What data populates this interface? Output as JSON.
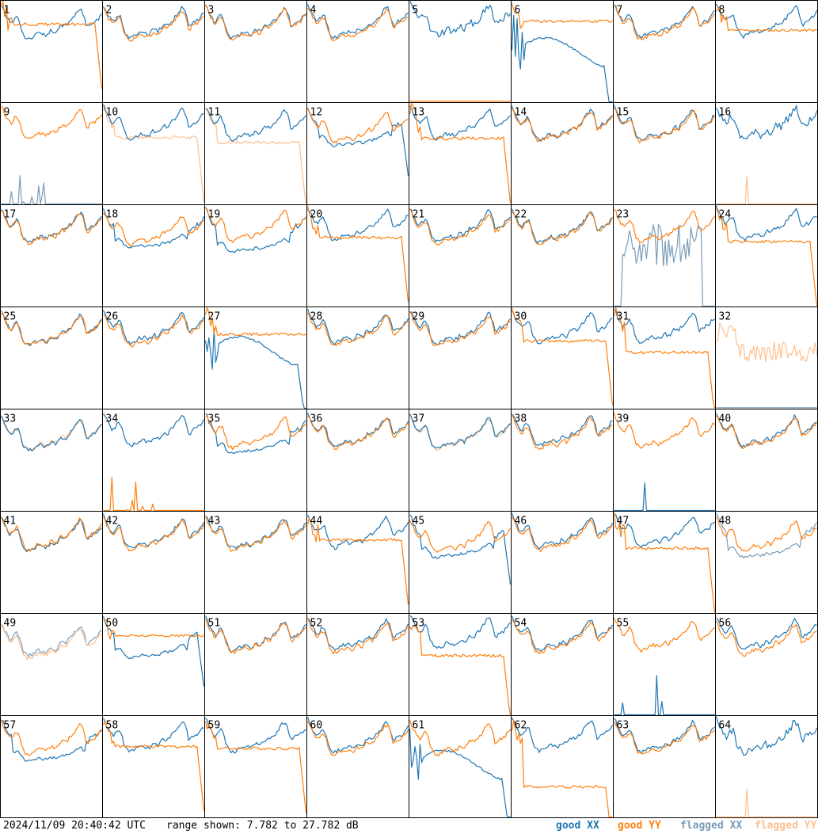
{
  "chart_data": {
    "type": "line",
    "panel_labels": [
      "1",
      "2",
      "3",
      "4",
      "5",
      "6",
      "7",
      "8",
      "9",
      "10",
      "11",
      "12",
      "13",
      "14",
      "15",
      "16",
      "17",
      "18",
      "19",
      "20",
      "21",
      "22",
      "23",
      "24",
      "25",
      "26",
      "27",
      "28",
      "29",
      "30",
      "31",
      "32",
      "33",
      "34",
      "35",
      "36",
      "37",
      "38",
      "39",
      "40",
      "41",
      "42",
      "43",
      "44",
      "45",
      "46",
      "47",
      "48",
      "49",
      "50",
      "51",
      "52",
      "53",
      "54",
      "55",
      "56",
      "57",
      "58",
      "59",
      "60",
      "61",
      "62",
      "63",
      "64"
    ],
    "layout": {
      "rows": 8,
      "cols": 8
    },
    "y_range_db": [
      7.782,
      27.782
    ],
    "x_points": 60,
    "base_shape_db": [
      27.1,
      26.5,
      25.6,
      24.9,
      24.3,
      23.8,
      23.7,
      24.1,
      24.6,
      24.9,
      24.6,
      23.6,
      22.3,
      21.4,
      20.9,
      20.6,
      20.5,
      20.6,
      20.8,
      21.0,
      21.2,
      21.4,
      21.5,
      21.6,
      21.5,
      21.4,
      21.2,
      21.3,
      21.6,
      22.0,
      22.1,
      21.9,
      21.8,
      22.1,
      22.6,
      23.0,
      23.1,
      23.0,
      23.0,
      23.4,
      23.8,
      24.1,
      24.6,
      25.0,
      25.5,
      26.0,
      26.4,
      26.3,
      25.6,
      24.4,
      23.0,
      22.9,
      23.3,
      23.6,
      23.7,
      23.9,
      24.2,
      24.6,
      25.1,
      25.4
    ],
    "series": [
      {
        "name": "good XX",
        "color": "#1f77b4"
      },
      {
        "name": "good YY",
        "color": "#ff7f0e"
      },
      {
        "name": "flagged XX",
        "color": "#7a9cb8"
      },
      {
        "name": "flagged YY",
        "color": "#ffbf8c"
      }
    ],
    "panels": [
      {
        "label": "1",
        "xx": {
          "type": "base",
          "offset": -0.2
        },
        "yy": {
          "type": "lowflat",
          "level": 23.2,
          "drop": true,
          "noise": 5
        }
      },
      {
        "label": "2",
        "xx": {
          "type": "base",
          "offset": 0
        },
        "yy": {
          "type": "base",
          "offset": -0.5
        }
      },
      {
        "label": "3",
        "xx": {
          "type": "base",
          "offset": 0
        },
        "yy": {
          "type": "base",
          "offset": -0.3
        }
      },
      {
        "label": "4",
        "xx": {
          "type": "base",
          "offset": 0.1
        },
        "yy": {
          "type": "base",
          "offset": -0.4
        }
      },
      {
        "label": "5",
        "xx": {
          "type": "wiggle",
          "offset": 0.4
        },
        "yy": {
          "type": "floor"
        }
      },
      {
        "label": "6",
        "xx": {
          "type": "valley",
          "level": 17.5,
          "drop": true
        },
        "yy": {
          "type": "plateau",
          "level": 23.8
        }
      },
      {
        "label": "7",
        "xx": {
          "type": "base",
          "offset": 0.2
        },
        "yy": {
          "type": "base",
          "offset": -0.3
        }
      },
      {
        "label": "8",
        "xx": {
          "type": "base",
          "offset": 0.3
        },
        "yy": {
          "type": "plateau",
          "level": 22.0,
          "drop": false
        }
      },
      {
        "label": "9",
        "fxx": {
          "type": "spikes"
        },
        "yy": {
          "type": "base",
          "offset": 0.2
        }
      },
      {
        "label": "10",
        "xx": {
          "type": "base",
          "offset": 0.2
        },
        "fyy": {
          "type": "lowflat",
          "level": 21.0,
          "drop": true,
          "noise": 2
        }
      },
      {
        "label": "11",
        "xx": {
          "type": "base",
          "offset": 0
        },
        "fyy": {
          "type": "lowflat",
          "level": 20.0,
          "drop": true,
          "noise": 2
        }
      },
      {
        "label": "12",
        "xx": {
          "type": "sag",
          "level": 20.5,
          "drop": true
        },
        "yy": {
          "type": "base",
          "offset": -0.5
        }
      },
      {
        "label": "13",
        "xx": {
          "type": "base",
          "offset": 0.2
        },
        "yy": {
          "type": "lowflat",
          "level": 20.8,
          "drop": true,
          "noise": 4
        }
      },
      {
        "label": "14",
        "xx": {
          "type": "base",
          "offset": 0
        },
        "yy": {
          "type": "base",
          "offset": -0.2
        }
      },
      {
        "label": "15",
        "xx": {
          "type": "base",
          "offset": 0
        },
        "yy": {
          "type": "base",
          "offset": -0.3
        }
      },
      {
        "label": "16",
        "xx": {
          "type": "wiggle",
          "offset": 0.3
        },
        "fyy": {
          "type": "spike1"
        }
      },
      {
        "label": "17",
        "xx": {
          "type": "base",
          "offset": 0
        },
        "yy": {
          "type": "base",
          "offset": -0.2
        }
      },
      {
        "label": "18",
        "xx": {
          "type": "sag",
          "level": 20.5,
          "drop": false
        },
        "yy": {
          "type": "base",
          "offset": -0.6
        }
      },
      {
        "label": "19",
        "xx": {
          "type": "sag",
          "level": 19.2,
          "drop": false
        },
        "yy": {
          "type": "base",
          "offset": 0.2
        }
      },
      {
        "label": "20",
        "xx": {
          "type": "base",
          "offset": 0.4
        },
        "yy": {
          "type": "lowflat",
          "level": 21.4,
          "drop": true,
          "noise": 4
        }
      },
      {
        "label": "21",
        "xx": {
          "type": "base",
          "offset": 0.2
        },
        "yy": {
          "type": "base",
          "offset": -0.3
        }
      },
      {
        "label": "22",
        "xx": {
          "type": "base",
          "offset": 0
        },
        "yy": {
          "type": "base",
          "offset": -0.3
        }
      },
      {
        "label": "23",
        "fxx": {
          "type": "noisy"
        },
        "yy": {
          "type": "base",
          "offset": 0
        }
      },
      {
        "label": "24",
        "xx": {
          "type": "base",
          "offset": 0.5
        },
        "yy": {
          "type": "lowflat",
          "level": 20.6,
          "drop": true,
          "noise": 3
        }
      },
      {
        "label": "25",
        "xx": {
          "type": "base",
          "offset": -0.2
        },
        "yy": {
          "type": "base",
          "offset": -0.2
        }
      },
      {
        "label": "26",
        "xx": {
          "type": "base",
          "offset": 0.3
        },
        "yy": {
          "type": "base",
          "offset": -0.3
        }
      },
      {
        "label": "27",
        "xx": {
          "type": "valley",
          "level": 19.0,
          "drop": true
        },
        "yy": {
          "type": "plateau",
          "level": 22.5
        }
      },
      {
        "label": "28",
        "xx": {
          "type": "base",
          "offset": 0.2
        },
        "yy": {
          "type": "base",
          "offset": -0.3
        }
      },
      {
        "label": "29",
        "xx": {
          "type": "base",
          "offset": 0.2
        },
        "yy": {
          "type": "base",
          "offset": -0.3
        }
      },
      {
        "label": "30",
        "xx": {
          "type": "base",
          "offset": 0.3
        },
        "yy": {
          "type": "lowflat",
          "level": 21.2,
          "drop": true,
          "noise": 3
        }
      },
      {
        "label": "31",
        "xx": {
          "type": "base",
          "offset": 0.4
        },
        "yy": {
          "type": "lowflat",
          "level": 18.9,
          "drop": true,
          "noise": 3
        }
      },
      {
        "label": "32",
        "fxx": {
          "type": "floor"
        },
        "fyy": {
          "type": "noisy2"
        }
      },
      {
        "label": "33",
        "xx": {
          "type": "base",
          "offset": -0.8
        },
        "fyy": {
          "type": "base",
          "offset": -0.6
        }
      },
      {
        "label": "34",
        "xx": {
          "type": "base",
          "offset": 0.2
        },
        "yy": {
          "type": "spikes"
        }
      },
      {
        "label": "35",
        "xx": {
          "type": "sag",
          "level": 20.3,
          "drop": false
        },
        "yy": {
          "type": "base",
          "offset": -0.3
        }
      },
      {
        "label": "36",
        "xx": {
          "type": "base",
          "offset": 0
        },
        "yy": {
          "type": "base",
          "offset": -0.3
        }
      },
      {
        "label": "37",
        "xx": {
          "type": "base",
          "offset": -0.4
        },
        "fyy": {
          "type": "base",
          "offset": -0.5
        }
      },
      {
        "label": "38",
        "xx": {
          "type": "base",
          "offset": 0.2
        },
        "yy": {
          "type": "base",
          "offset": -0.4
        }
      },
      {
        "label": "39",
        "xx": {
          "type": "spike1"
        },
        "yy": {
          "type": "base",
          "offset": -0.2
        }
      },
      {
        "label": "40",
        "xx": {
          "type": "base",
          "offset": 0
        },
        "yy": {
          "type": "base",
          "offset": -0.3
        }
      },
      {
        "label": "41",
        "xx": {
          "type": "base",
          "offset": -0.4
        },
        "yy": {
          "type": "base",
          "offset": -0.2
        }
      },
      {
        "label": "42",
        "xx": {
          "type": "base",
          "offset": 0
        },
        "yy": {
          "type": "base",
          "offset": -0.3
        }
      },
      {
        "label": "43",
        "xx": {
          "type": "base",
          "offset": 0
        },
        "yy": {
          "type": "base",
          "offset": -0.3
        }
      },
      {
        "label": "44",
        "xx": {
          "type": "base",
          "offset": 0.2
        },
        "yy": {
          "type": "lowflat",
          "level": 22.2,
          "drop": true,
          "noise": 4
        }
      },
      {
        "label": "45",
        "xx": {
          "type": "sag",
          "level": 19.5,
          "drop": true
        },
        "yy": {
          "type": "base",
          "offset": -0.8
        }
      },
      {
        "label": "46",
        "xx": {
          "type": "base",
          "offset": 0.2
        },
        "yy": {
          "type": "base",
          "offset": -0.3
        }
      },
      {
        "label": "47",
        "xx": {
          "type": "base",
          "offset": 0.5
        },
        "yy": {
          "type": "lowflat",
          "level": 20.6,
          "drop": true,
          "noise": 4
        }
      },
      {
        "label": "48",
        "fxx": {
          "type": "sag",
          "level": 19.6,
          "drop": false
        },
        "yy": {
          "type": "base",
          "offset": -0.5
        }
      },
      {
        "label": "49",
        "fxx": {
          "type": "base",
          "offset": -1.0
        },
        "fyy": {
          "type": "base",
          "offset": -1.5
        }
      },
      {
        "label": "50",
        "xx": {
          "type": "sag",
          "level": 20.2,
          "drop": true
        },
        "yy": {
          "type": "plateau",
          "level": 23.5
        }
      },
      {
        "label": "51",
        "xx": {
          "type": "base",
          "offset": 0
        },
        "yy": {
          "type": "base",
          "offset": -0.3
        }
      },
      {
        "label": "52",
        "xx": {
          "type": "base",
          "offset": 0.2
        },
        "yy": {
          "type": "base",
          "offset": -0.4
        }
      },
      {
        "label": "53",
        "xx": {
          "type": "base",
          "offset": 0.5
        },
        "yy": {
          "type": "lowflat",
          "level": 19.5,
          "drop": true,
          "noise": 4
        }
      },
      {
        "label": "54",
        "xx": {
          "type": "base",
          "offset": 0.2
        },
        "yy": {
          "type": "base",
          "offset": -0.3
        }
      },
      {
        "label": "55",
        "xx": {
          "type": "spikes"
        },
        "yy": {
          "type": "base",
          "offset": 0
        }
      },
      {
        "label": "56",
        "xx": {
          "type": "base",
          "offset": 0.3
        },
        "yy": {
          "type": "base",
          "offset": -0.8
        }
      },
      {
        "label": "57",
        "xx": {
          "type": "sag",
          "level": 19.8,
          "drop": false
        },
        "yy": {
          "type": "base",
          "offset": -0.3
        }
      },
      {
        "label": "58",
        "xx": {
          "type": "base",
          "offset": 0.3
        },
        "yy": {
          "type": "lowflat",
          "level": 21.8,
          "drop": true,
          "noise": 3
        }
      },
      {
        "label": "59",
        "xx": {
          "type": "base",
          "offset": 0.2
        },
        "yy": {
          "type": "lowflat",
          "level": 21.4,
          "drop": true,
          "noise": 3
        }
      },
      {
        "label": "60",
        "xx": {
          "type": "base",
          "offset": 0.2
        },
        "yy": {
          "type": "base",
          "offset": -0.4
        }
      },
      {
        "label": "61",
        "xx": {
          "type": "valley",
          "level": 18.0,
          "drop": true
        },
        "yy": {
          "type": "base",
          "offset": -0.3
        }
      },
      {
        "label": "62",
        "xx": {
          "type": "base",
          "offset": 0.5
        },
        "yy": {
          "type": "lowflat",
          "level": 13.8,
          "drop": true,
          "noise": 5
        }
      },
      {
        "label": "63",
        "xx": {
          "type": "base",
          "offset": 0.2
        },
        "yy": {
          "type": "base",
          "offset": -0.2
        }
      },
      {
        "label": "64",
        "xx": {
          "type": "wiggle",
          "offset": 0.2
        },
        "fyy": {
          "type": "spike1"
        }
      }
    ]
  },
  "footer": {
    "timestamp": "2024/11/09 20:40:42 UTC",
    "range_text": "range shown: 7.782 to 27.782 dB"
  }
}
